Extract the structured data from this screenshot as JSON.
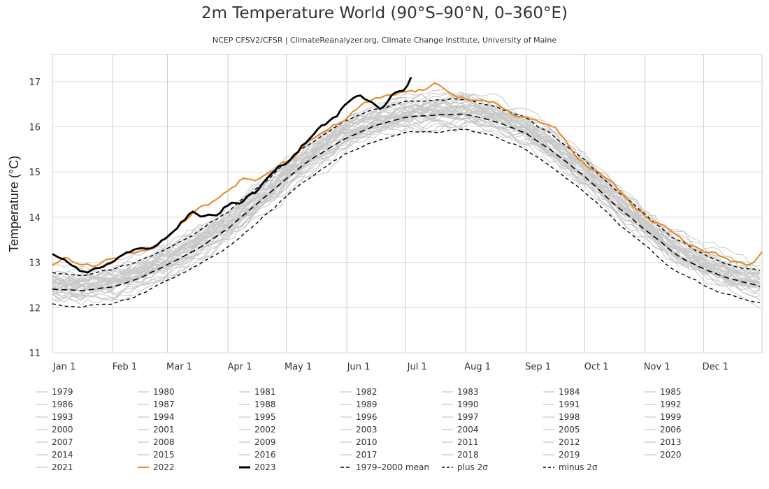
{
  "chart_data": {
    "type": "line",
    "title": "2m Temperature World (90°S–90°N, 0–360°E)",
    "subtitle": "NCEP CFSV2/CFSR | ClimateReanalyzer.org, Climate Change Institute, University of Maine",
    "ylabel": "Temperature (°C)",
    "xlabel": "",
    "ylim": [
      11,
      17.6
    ],
    "y_ticks": [
      11,
      12,
      13,
      14,
      15,
      16,
      17
    ],
    "x_ticks": [
      "Jan 1",
      "Feb 1",
      "Mar 1",
      "Apr 1",
      "May 1",
      "Jun 1",
      "Jul 1",
      "Aug 1",
      "Sep 1",
      "Oct 1",
      "Nov 1",
      "Dec 1"
    ],
    "x_tick_days": [
      1,
      32,
      60,
      91,
      121,
      152,
      182,
      213,
      244,
      274,
      305,
      335
    ],
    "grid": true,
    "legend_position": "bottom",
    "colors": {
      "year": "#c8c8c8",
      "y2022": "#e8871e",
      "y2023": "#000000",
      "stats": "#000000"
    },
    "climatology_mean": {
      "days": [
        1,
        15,
        32,
        46,
        60,
        75,
        91,
        106,
        121,
        136,
        152,
        167,
        182,
        197,
        213,
        228,
        244,
        259,
        274,
        289,
        305,
        320,
        335,
        350,
        365
      ],
      "values": [
        12.42,
        12.38,
        12.48,
        12.68,
        12.95,
        13.3,
        13.75,
        14.3,
        14.85,
        15.35,
        15.78,
        16.05,
        16.2,
        16.25,
        16.28,
        16.12,
        15.85,
        15.4,
        14.9,
        14.3,
        13.72,
        13.2,
        12.85,
        12.62,
        12.45
      ]
    },
    "climatology_sigma": 0.36,
    "series": [
      {
        "name": "2022",
        "highlight": true,
        "days": [
          1,
          8,
          15,
          22,
          32,
          39,
          46,
          53,
          60,
          67,
          75,
          82,
          91,
          98,
          106,
          113,
          121,
          128,
          136,
          143,
          152,
          160,
          167,
          174,
          182,
          190,
          197,
          205,
          213,
          220,
          228,
          236,
          244,
          252,
          259,
          266,
          274,
          282,
          289,
          297,
          305,
          312,
          320,
          327,
          335,
          343,
          350,
          358,
          365
        ],
        "values": [
          12.95,
          13.05,
          12.98,
          12.95,
          13.1,
          13.28,
          13.35,
          13.45,
          13.62,
          13.9,
          14.25,
          14.3,
          14.6,
          14.85,
          14.75,
          14.98,
          15.2,
          15.45,
          15.7,
          15.95,
          16.15,
          16.45,
          16.55,
          16.6,
          16.72,
          16.78,
          16.88,
          16.78,
          16.68,
          16.55,
          16.45,
          16.3,
          16.2,
          16.1,
          15.9,
          15.55,
          15.2,
          14.95,
          14.7,
          14.3,
          14.0,
          13.85,
          13.6,
          13.38,
          13.22,
          13.1,
          13.05,
          12.9,
          13.15
        ]
      },
      {
        "name": "2023",
        "highlight": true,
        "days": [
          1,
          5,
          10,
          15,
          20,
          25,
          32,
          38,
          45,
          52,
          60,
          66,
          72,
          78,
          85,
          91,
          98,
          105,
          112,
          118,
          125,
          132,
          140,
          147,
          153,
          158,
          162,
          166,
          170,
          175,
          180,
          183,
          186
        ],
        "values": [
          13.15,
          13.0,
          12.9,
          12.75,
          12.8,
          12.85,
          13.05,
          13.2,
          13.25,
          13.35,
          13.6,
          13.85,
          14.1,
          14.0,
          14.05,
          14.3,
          14.35,
          14.55,
          14.85,
          15.05,
          15.35,
          15.7,
          16.05,
          16.2,
          16.55,
          16.78,
          16.65,
          16.6,
          16.5,
          16.75,
          16.8,
          16.9,
          17.18
        ]
      }
    ]
  },
  "legend": [
    {
      "label": "1979",
      "style": "year"
    },
    {
      "label": "1980",
      "style": "year"
    },
    {
      "label": "1981",
      "style": "year"
    },
    {
      "label": "1982",
      "style": "year"
    },
    {
      "label": "1983",
      "style": "year"
    },
    {
      "label": "1984",
      "style": "year"
    },
    {
      "label": "1985",
      "style": "year"
    },
    {
      "label": "1986",
      "style": "year"
    },
    {
      "label": "1987",
      "style": "year"
    },
    {
      "label": "1988",
      "style": "year"
    },
    {
      "label": "1989",
      "style": "year"
    },
    {
      "label": "1990",
      "style": "year"
    },
    {
      "label": "1991",
      "style": "year"
    },
    {
      "label": "1992",
      "style": "year"
    },
    {
      "label": "1993",
      "style": "year"
    },
    {
      "label": "1994",
      "style": "year"
    },
    {
      "label": "1995",
      "style": "year"
    },
    {
      "label": "1996",
      "style": "year"
    },
    {
      "label": "1997",
      "style": "year"
    },
    {
      "label": "1998",
      "style": "year"
    },
    {
      "label": "1999",
      "style": "year"
    },
    {
      "label": "2000",
      "style": "year"
    },
    {
      "label": "2001",
      "style": "year"
    },
    {
      "label": "2002",
      "style": "year"
    },
    {
      "label": "2003",
      "style": "year"
    },
    {
      "label": "2004",
      "style": "year"
    },
    {
      "label": "2005",
      "style": "year"
    },
    {
      "label": "2006",
      "style": "year"
    },
    {
      "label": "2007",
      "style": "year"
    },
    {
      "label": "2008",
      "style": "year"
    },
    {
      "label": "2009",
      "style": "year"
    },
    {
      "label": "2010",
      "style": "year"
    },
    {
      "label": "2011",
      "style": "year"
    },
    {
      "label": "2012",
      "style": "year"
    },
    {
      "label": "2013",
      "style": "year"
    },
    {
      "label": "2014",
      "style": "year"
    },
    {
      "label": "2015",
      "style": "year"
    },
    {
      "label": "2016",
      "style": "year"
    },
    {
      "label": "2017",
      "style": "year"
    },
    {
      "label": "2018",
      "style": "year"
    },
    {
      "label": "2019",
      "style": "year"
    },
    {
      "label": "2020",
      "style": "year"
    },
    {
      "label": "2021",
      "style": "year"
    },
    {
      "label": "2022",
      "style": "y2022"
    },
    {
      "label": "2023",
      "style": "y2023"
    },
    {
      "label": "1979–2000 mean",
      "style": "mean"
    },
    {
      "label": "plus 2σ",
      "style": "plus"
    },
    {
      "label": "minus 2σ",
      "style": "minus"
    }
  ]
}
